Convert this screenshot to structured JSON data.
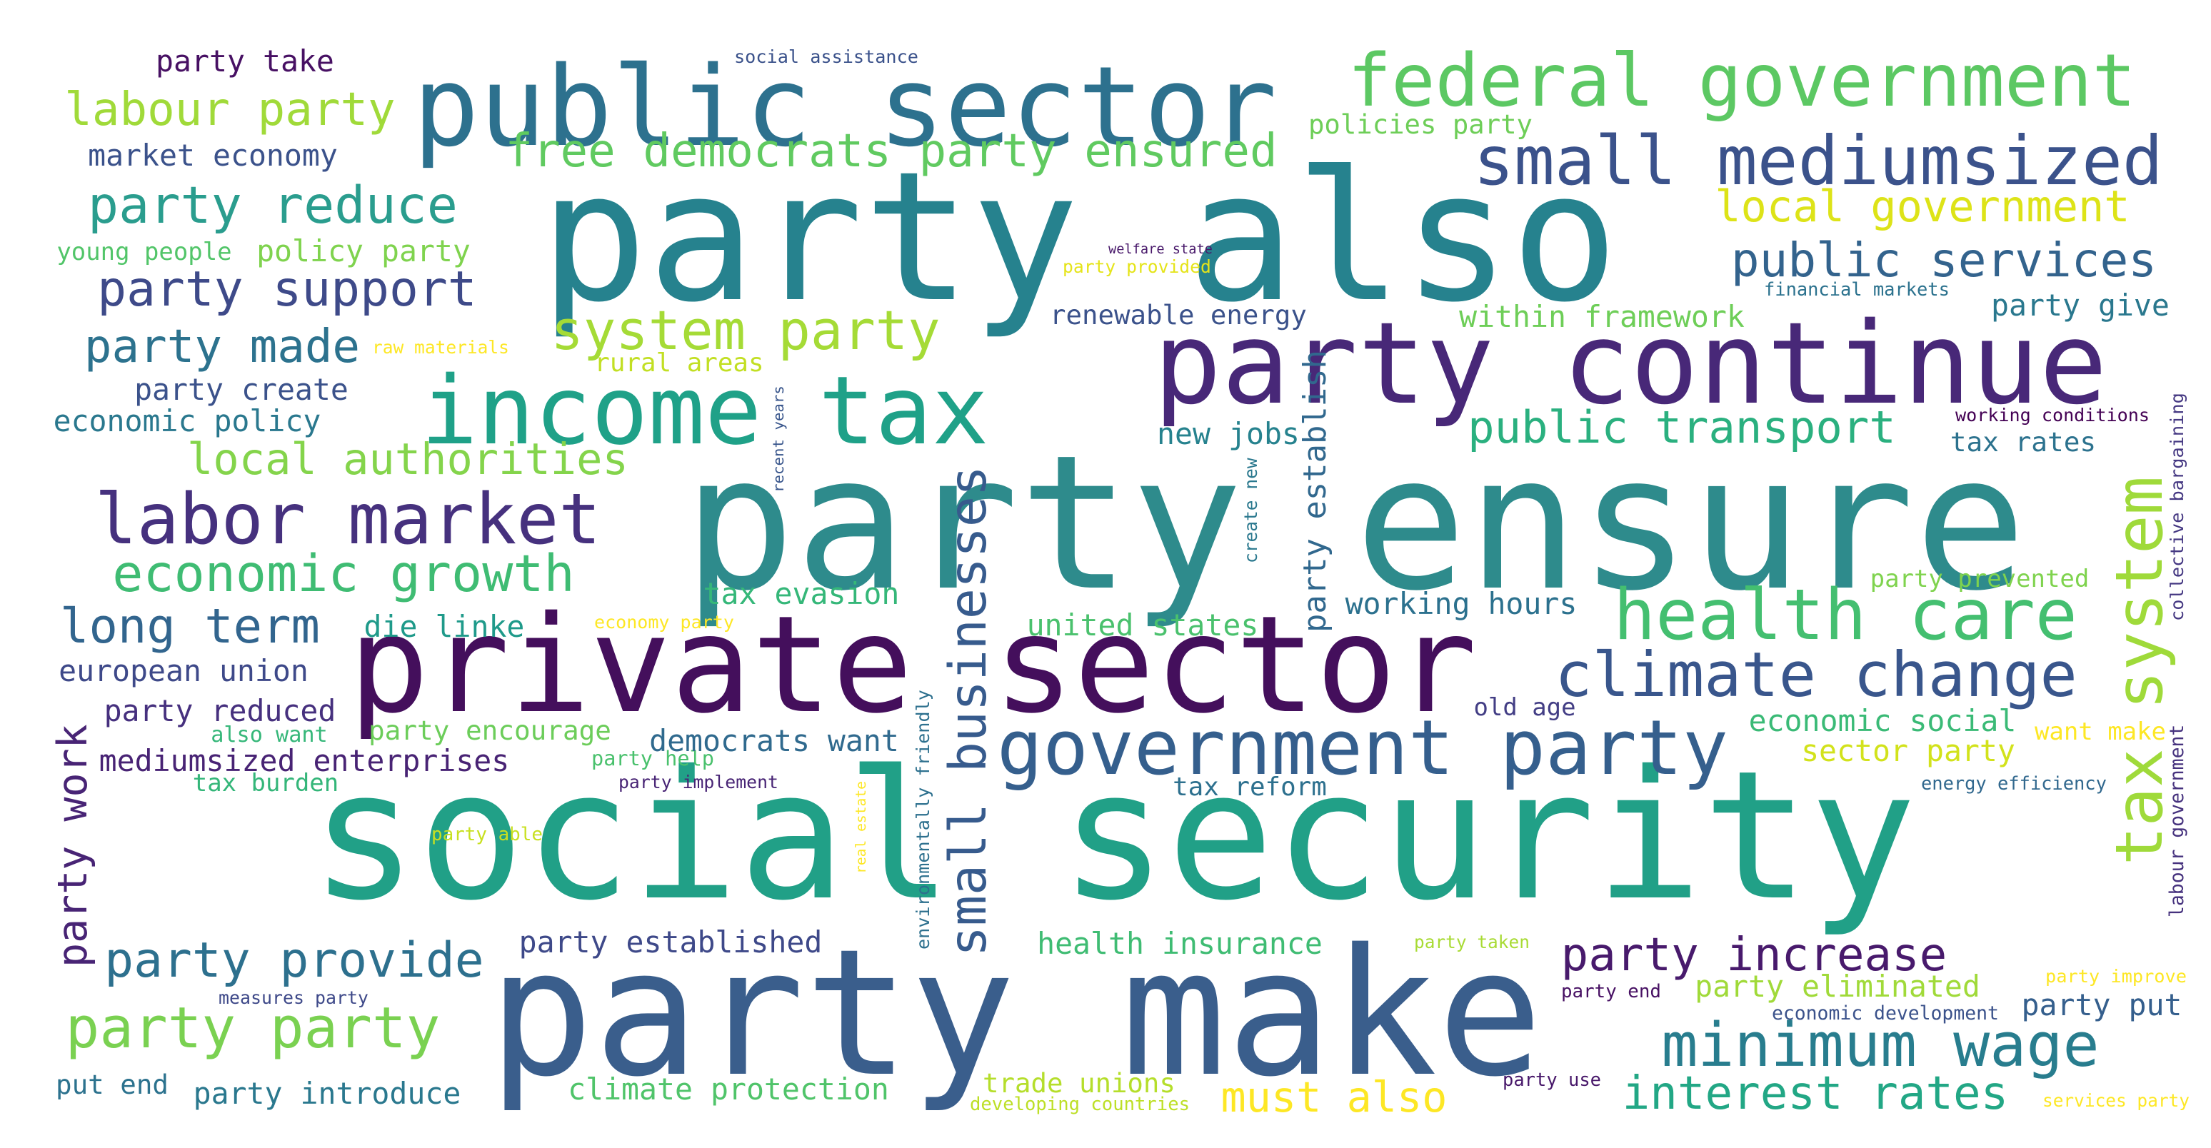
{
  "words": [
    {
      "text": "social security",
      "color": "#21a087"
    },
    {
      "text": "party ensure",
      "color": "#2e8b8c"
    },
    {
      "text": "party also",
      "color": "#26828e"
    },
    {
      "text": "party make",
      "color": "#3a5e8c"
    },
    {
      "text": "private sector",
      "color": "#440f5c"
    },
    {
      "text": "party continue",
      "color": "#482878"
    },
    {
      "text": "public sector",
      "color": "#2d718e"
    },
    {
      "text": "income tax",
      "color": "#1fa188"
    },
    {
      "text": "federal government",
      "color": "#5cc863"
    },
    {
      "text": "government party",
      "color": "#355f8d"
    },
    {
      "text": "health care",
      "color": "#44bf70"
    },
    {
      "text": "small mediumsized",
      "color": "#3b528b"
    },
    {
      "text": "climate change",
      "color": "#39568c"
    },
    {
      "text": "labor market",
      "color": "#46317e"
    },
    {
      "text": "minimum wage",
      "color": "#287d8e"
    },
    {
      "text": "tax system",
      "color": "#9fda3a"
    },
    {
      "text": "small businesses",
      "color": "#375b8d"
    },
    {
      "text": "economic growth",
      "color": "#3fbc73"
    },
    {
      "text": "party provide",
      "color": "#2d708e"
    },
    {
      "text": "party party",
      "color": "#7ad151"
    },
    {
      "text": "local authorities",
      "color": "#84d44b"
    },
    {
      "text": "public services",
      "color": "#33638d"
    },
    {
      "text": "system party",
      "color": "#a5db36"
    },
    {
      "text": "party support",
      "color": "#3e4a89"
    },
    {
      "text": "party reduce",
      "color": "#2a9d8e"
    },
    {
      "text": "party made",
      "color": "#2c728e"
    },
    {
      "text": "local government",
      "color": "#dde318"
    },
    {
      "text": "free democrats party ensured",
      "color": "#60ca60"
    },
    {
      "text": "labour party",
      "color": "#a0da39"
    },
    {
      "text": "long term",
      "color": "#32658e"
    },
    {
      "text": "party increase",
      "color": "#481a6c"
    },
    {
      "text": "interest rates",
      "color": "#22a785"
    },
    {
      "text": "public transport",
      "color": "#2ab07f"
    },
    {
      "text": "must also",
      "color": "#fde725"
    },
    {
      "text": "party work",
      "color": "#482475"
    },
    {
      "text": "party establish",
      "color": "#31688e"
    },
    {
      "text": "party take",
      "color": "#471063"
    },
    {
      "text": "market economy",
      "color": "#3b528b"
    },
    {
      "text": "policy party",
      "color": "#7fd34e"
    },
    {
      "text": "young people",
      "color": "#52c569"
    },
    {
      "text": "party create",
      "color": "#3b528b"
    },
    {
      "text": "economic policy",
      "color": "#2a788e"
    },
    {
      "text": "european union",
      "color": "#3e4989"
    },
    {
      "text": "party reduced",
      "color": "#46307e"
    },
    {
      "text": "mediumsized enterprises",
      "color": "#482374"
    },
    {
      "text": "tax burden",
      "color": "#34b679"
    },
    {
      "text": "also want",
      "color": "#35b779"
    },
    {
      "text": "party encourage",
      "color": "#6ccd5a"
    },
    {
      "text": "party help",
      "color": "#4ac16d"
    },
    {
      "text": "democrats want",
      "color": "#306a8e"
    },
    {
      "text": "party implement",
      "color": "#482475"
    },
    {
      "text": "party established",
      "color": "#3e4989"
    },
    {
      "text": "party introduce",
      "color": "#2a788e"
    },
    {
      "text": "put end",
      "color": "#2c728e"
    },
    {
      "text": "climate protection",
      "color": "#50c46a"
    },
    {
      "text": "health insurance",
      "color": "#3fbc73"
    },
    {
      "text": "trade unions",
      "color": "#b5de2b"
    },
    {
      "text": "developing countries",
      "color": "#bddf26"
    },
    {
      "text": "tax evasion",
      "color": "#35b779"
    },
    {
      "text": "die linke",
      "color": "#1f9a8a"
    },
    {
      "text": "economy party",
      "color": "#fde725"
    },
    {
      "text": "united states",
      "color": "#4ac16d"
    },
    {
      "text": "working hours",
      "color": "#2c718e"
    },
    {
      "text": "new jobs",
      "color": "#26828e"
    },
    {
      "text": "renewable energy",
      "color": "#3b528b"
    },
    {
      "text": "welfare state",
      "color": "#48186a"
    },
    {
      "text": "party provided",
      "color": "#e5e419"
    },
    {
      "text": "within framework",
      "color": "#6ece58"
    },
    {
      "text": "financial markets",
      "color": "#2c728e"
    },
    {
      "text": "party give",
      "color": "#2a788e"
    },
    {
      "text": "working conditions",
      "color": "#440154"
    },
    {
      "text": "tax rates",
      "color": "#2c728e"
    },
    {
      "text": "policies party",
      "color": "#6ece58"
    },
    {
      "text": "social assistance",
      "color": "#3b528b"
    },
    {
      "text": "raw materials",
      "color": "#fde725"
    },
    {
      "text": "rural areas",
      "color": "#c2df23"
    },
    {
      "text": "recent years",
      "color": "#39568c"
    },
    {
      "text": "create new",
      "color": "#2a788e"
    },
    {
      "text": "party prevented",
      "color": "#7fd34e"
    },
    {
      "text": "old age",
      "color": "#433e85"
    },
    {
      "text": "economic social",
      "color": "#3aba76"
    },
    {
      "text": "want make",
      "color": "#fde725"
    },
    {
      "text": "sector party",
      "color": "#d2e21b"
    },
    {
      "text": "tax reform",
      "color": "#2d708e"
    },
    {
      "text": "energy efficiency",
      "color": "#31688e"
    },
    {
      "text": "real estate",
      "color": "#fde725"
    },
    {
      "text": "environmentally friendly",
      "color": "#2d708e"
    },
    {
      "text": "party able",
      "color": "#c8e020"
    },
    {
      "text": "measures party",
      "color": "#3e4989"
    },
    {
      "text": "party taken",
      "color": "#a8db34"
    },
    {
      "text": "party end",
      "color": "#471063"
    },
    {
      "text": "economic development",
      "color": "#3b528b"
    },
    {
      "text": "party eliminated",
      "color": "#a0da39"
    },
    {
      "text": "party put",
      "color": "#355f8d"
    },
    {
      "text": "party improve",
      "color": "#fde725"
    },
    {
      "text": "party use",
      "color": "#48186a"
    },
    {
      "text": "services party",
      "color": "#fde725"
    },
    {
      "text": "collective bargaining",
      "color": "#453882"
    },
    {
      "text": "labour government",
      "color": "#46327e"
    }
  ]
}
